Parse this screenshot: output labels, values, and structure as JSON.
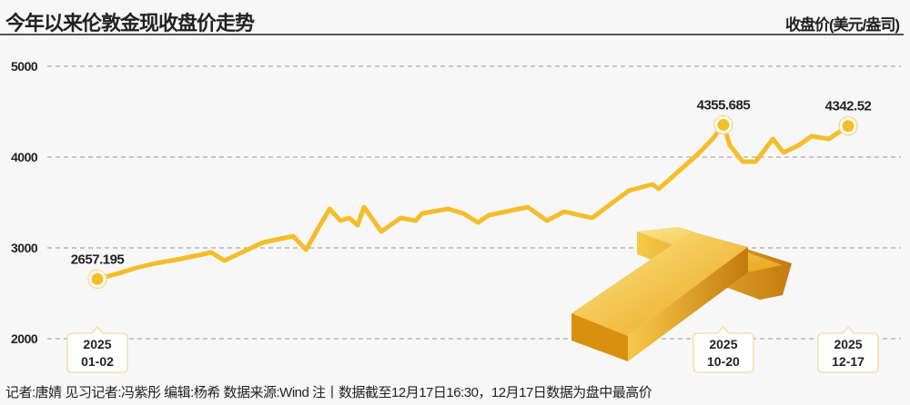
{
  "header": {
    "title": "今年以来伦敦金现收盘价走势",
    "unit": "收盘价(美元/盎司)"
  },
  "footer": {
    "text": "记者:唐婧  见习记者:冯紫彤  编辑:杨希  数据来源:Wind  注丨数据截至12月17日16:30，12月17日数据为盘中最高价"
  },
  "colors": {
    "line": "#f5bd2a",
    "grid": "#999999",
    "callout_border": "#f3e0a8",
    "gold": "#e8a51c"
  },
  "decoration": "gold-bars-illustration",
  "chart_data": {
    "type": "line",
    "title": "今年以来伦敦金现收盘价走势",
    "ylabel": "收盘价(美元/盎司)",
    "ylim": [
      2000,
      5000
    ],
    "yticks": [
      "5000",
      "4000",
      "3000",
      "2000"
    ],
    "grid": true,
    "x": [
      "2025-01-02",
      "2025-01-12",
      "2025-01-20",
      "2025-01-29",
      "2025-02-10",
      "2025-02-24",
      "2025-03-02",
      "2025-03-20",
      "2025-04-03",
      "2025-04-09",
      "2025-04-15",
      "2025-04-20",
      "2025-04-25",
      "2025-04-29",
      "2025-05-03",
      "2025-05-06",
      "2025-05-14",
      "2025-05-23",
      "2025-05-30",
      "2025-06-02",
      "2025-06-14",
      "2025-06-21",
      "2025-06-28",
      "2025-07-03",
      "2025-07-21",
      "2025-07-30",
      "2025-08-07",
      "2025-08-20",
      "2025-09-06",
      "2025-09-17",
      "2025-09-20",
      "2025-09-30",
      "2025-10-08",
      "2025-10-15",
      "2025-10-20",
      "2025-10-23",
      "2025-10-29",
      "2025-11-04",
      "2025-11-12",
      "2025-11-17",
      "2025-11-24",
      "2025-11-30",
      "2025-12-08",
      "2025-12-17"
    ],
    "values": [
      2657.195,
      2720,
      2780,
      2830,
      2880,
      2950,
      2860,
      3060,
      3130,
      2980,
      3230,
      3430,
      3300,
      3330,
      3250,
      3450,
      3180,
      3330,
      3300,
      3380,
      3430,
      3380,
      3280,
      3360,
      3450,
      3300,
      3400,
      3330,
      3630,
      3700,
      3650,
      3860,
      4030,
      4200,
      4355.685,
      4130,
      3950,
      3950,
      4200,
      4050,
      4130,
      4230,
      4200,
      4342.52
    ],
    "annotations": [
      {
        "date": "2025-01-02",
        "value": 2657.195,
        "label": "2657.195",
        "year": "2025",
        "md": "01-02"
      },
      {
        "date": "2025-10-20",
        "value": 4355.685,
        "label": "4355.685",
        "year": "2025",
        "md": "10-20"
      },
      {
        "date": "2025-12-17",
        "value": 4342.52,
        "label": "4342.52",
        "year": "2025",
        "md": "12-17"
      }
    ]
  }
}
